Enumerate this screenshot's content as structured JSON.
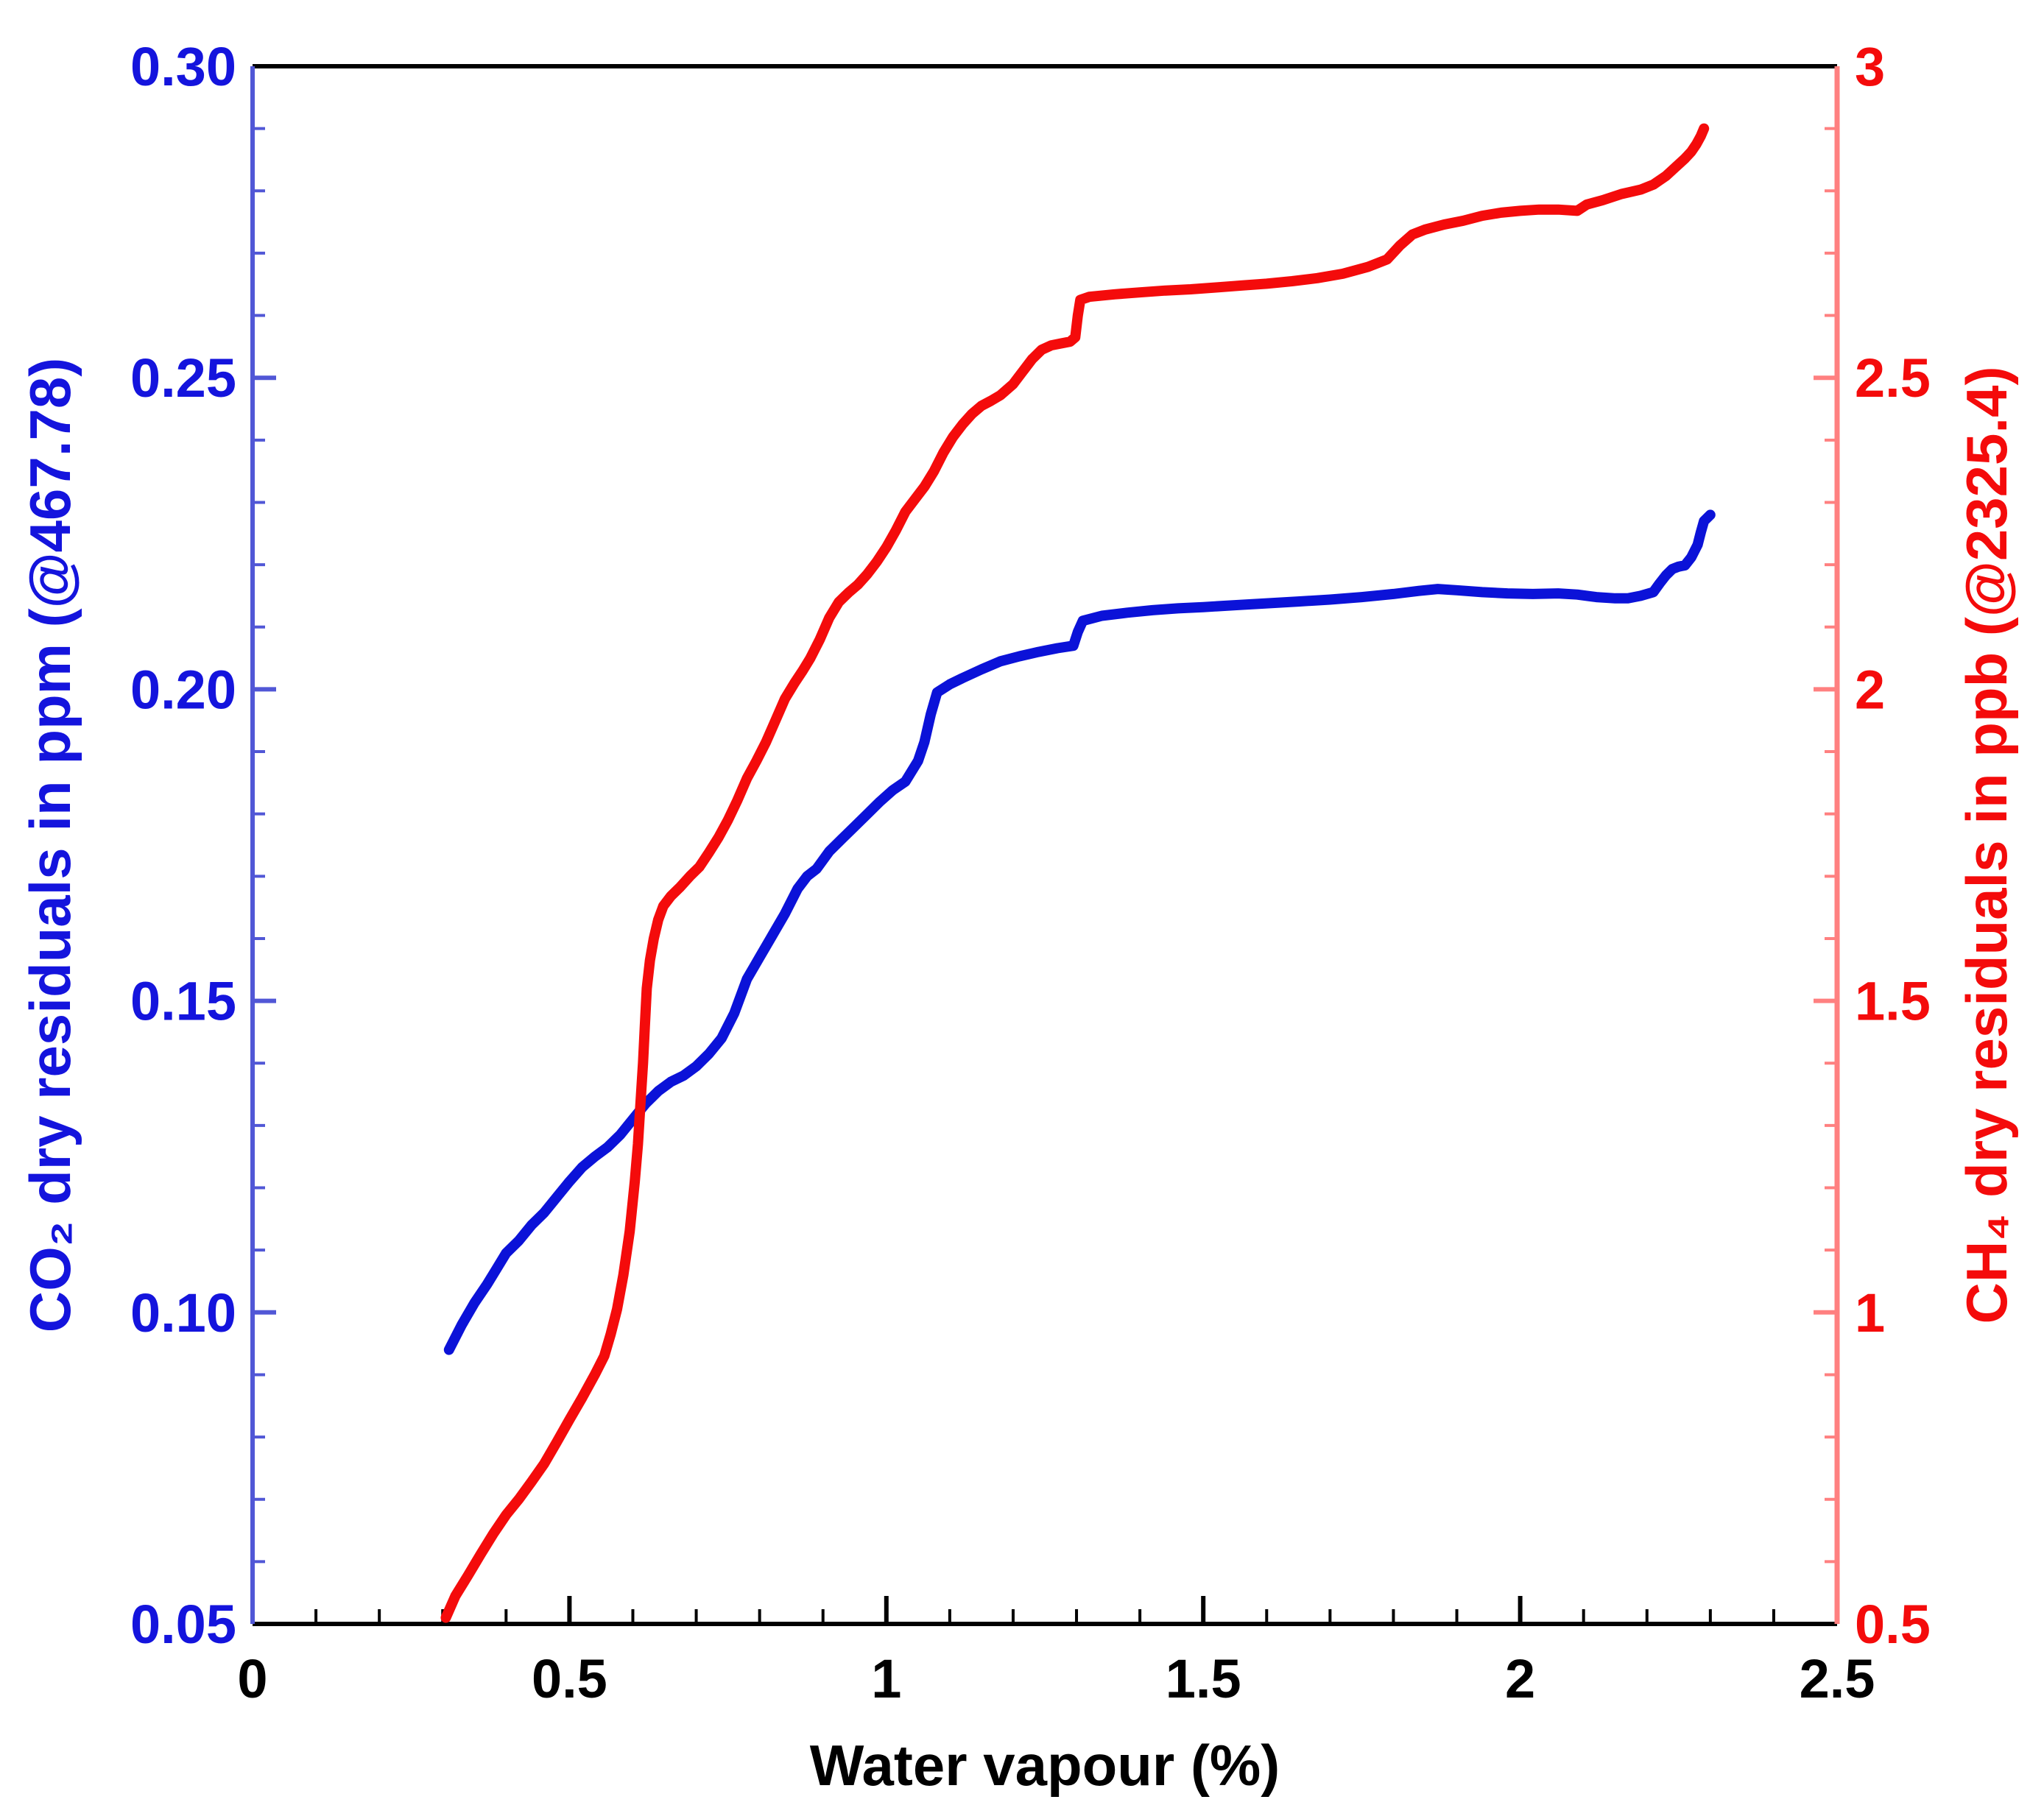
{
  "chart_data": {
    "type": "line",
    "title": "",
    "xlabel": "Water vapour (%)",
    "ylabel_left": "CO₂ dry residuals in ppm (@467.78)",
    "ylabel_right": "CH₄ dry residuals in ppb (@2325.4)",
    "grid": false,
    "legend": "none",
    "colors": {
      "left_accent": "#1414dd",
      "left_axis_line": "#5157d6",
      "right_accent": "#f40b0b",
      "right_axis_line": "#ff8080",
      "frame": "#000000"
    },
    "x_axis": {
      "min": 0,
      "max": 2.5,
      "major_step": 0.5,
      "minor_step": 0.1,
      "tick_values": [
        0,
        0.5,
        1,
        1.5,
        2,
        2.5
      ],
      "tick_labels": [
        "0",
        "0.5",
        "1",
        "1.5",
        "2",
        "2.5"
      ]
    },
    "y_axis_left": {
      "min": 0.05,
      "max": 0.3,
      "major_step": 0.05,
      "minor_step": 0.01,
      "tick_values": [
        0.05,
        0.1,
        0.15,
        0.2,
        0.25,
        0.3
      ],
      "tick_labels": [
        "0.05",
        "0.10",
        "0.15",
        "0.20",
        "0.25",
        "0.30"
      ]
    },
    "y_axis_right": {
      "min": 0.5,
      "max": 3,
      "major_step": 0.5,
      "minor_step": 0.1,
      "tick_values": [
        0.5,
        1,
        1.5,
        2,
        2.5,
        3
      ],
      "tick_labels": [
        "0.5",
        "1",
        "1.5",
        "2",
        "2.5",
        "3"
      ]
    },
    "series": [
      {
        "name": "CO2 dry residuals",
        "axis": "left",
        "color": "#0b12d8",
        "points": [
          [
            0.31,
            0.094
          ],
          [
            0.33,
            0.098
          ],
          [
            0.35,
            0.1015
          ],
          [
            0.37,
            0.1045
          ],
          [
            0.385,
            0.107
          ],
          [
            0.4,
            0.1095
          ],
          [
            0.42,
            0.1115
          ],
          [
            0.44,
            0.114
          ],
          [
            0.46,
            0.116
          ],
          [
            0.48,
            0.1185
          ],
          [
            0.5,
            0.121
          ],
          [
            0.52,
            0.1233
          ],
          [
            0.54,
            0.125
          ],
          [
            0.56,
            0.1265
          ],
          [
            0.58,
            0.1285
          ],
          [
            0.6,
            0.131
          ],
          [
            0.62,
            0.1335
          ],
          [
            0.64,
            0.1355
          ],
          [
            0.66,
            0.137
          ],
          [
            0.68,
            0.138
          ],
          [
            0.7,
            0.1395
          ],
          [
            0.72,
            0.1415
          ],
          [
            0.74,
            0.144
          ],
          [
            0.76,
            0.148
          ],
          [
            0.78,
            0.1535
          ],
          [
            0.8,
            0.157
          ],
          [
            0.82,
            0.1605
          ],
          [
            0.84,
            0.164
          ],
          [
            0.86,
            0.168
          ],
          [
            0.875,
            0.17
          ],
          [
            0.89,
            0.1712
          ],
          [
            0.91,
            0.174
          ],
          [
            0.93,
            0.176
          ],
          [
            0.95,
            0.178
          ],
          [
            0.97,
            0.18
          ],
          [
            0.99,
            0.182
          ],
          [
            1.01,
            0.1838
          ],
          [
            1.03,
            0.1852
          ],
          [
            1.05,
            0.1885
          ],
          [
            1.06,
            0.1915
          ],
          [
            1.07,
            0.196
          ],
          [
            1.08,
            0.1995
          ],
          [
            1.1,
            0.2008
          ],
          [
            1.12,
            0.2018
          ],
          [
            1.15,
            0.2032
          ],
          [
            1.18,
            0.2045
          ],
          [
            1.21,
            0.2053
          ],
          [
            1.24,
            0.206
          ],
          [
            1.27,
            0.2066
          ],
          [
            1.295,
            0.207
          ],
          [
            1.302,
            0.2092
          ],
          [
            1.31,
            0.211
          ],
          [
            1.34,
            0.2118
          ],
          [
            1.38,
            0.2123
          ],
          [
            1.42,
            0.2127
          ],
          [
            1.46,
            0.213
          ],
          [
            1.5,
            0.2132
          ],
          [
            1.55,
            0.2135
          ],
          [
            1.6,
            0.2138
          ],
          [
            1.65,
            0.2141
          ],
          [
            1.7,
            0.2144
          ],
          [
            1.75,
            0.2148
          ],
          [
            1.8,
            0.2153
          ],
          [
            1.84,
            0.2158
          ],
          [
            1.87,
            0.2161
          ],
          [
            1.9,
            0.2159
          ],
          [
            1.94,
            0.2156
          ],
          [
            1.98,
            0.2154
          ],
          [
            2.02,
            0.2153
          ],
          [
            2.06,
            0.2154
          ],
          [
            2.09,
            0.2152
          ],
          [
            2.12,
            0.2148
          ],
          [
            2.15,
            0.2146
          ],
          [
            2.17,
            0.2146
          ],
          [
            2.19,
            0.215
          ],
          [
            2.21,
            0.2156
          ],
          [
            2.22,
            0.217
          ],
          [
            2.23,
            0.2183
          ],
          [
            2.24,
            0.2193
          ],
          [
            2.25,
            0.2197
          ],
          [
            2.26,
            0.2199
          ],
          [
            2.27,
            0.2212
          ],
          [
            2.28,
            0.2232
          ],
          [
            2.285,
            0.2252
          ],
          [
            2.29,
            0.227
          ],
          [
            2.3,
            0.228
          ]
        ]
      },
      {
        "name": "CH4 dry residuals",
        "axis": "right",
        "color": "#f40b0b",
        "points": [
          [
            0.305,
            0.51
          ],
          [
            0.32,
            0.545
          ],
          [
            0.34,
            0.578
          ],
          [
            0.36,
            0.612
          ],
          [
            0.38,
            0.645
          ],
          [
            0.4,
            0.675
          ],
          [
            0.42,
            0.7
          ],
          [
            0.44,
            0.728
          ],
          [
            0.46,
            0.757
          ],
          [
            0.48,
            0.792
          ],
          [
            0.5,
            0.828
          ],
          [
            0.52,
            0.863
          ],
          [
            0.54,
            0.9
          ],
          [
            0.555,
            0.93
          ],
          [
            0.565,
            0.965
          ],
          [
            0.575,
            1.005
          ],
          [
            0.585,
            1.06
          ],
          [
            0.595,
            1.13
          ],
          [
            0.603,
            1.21
          ],
          [
            0.608,
            1.27
          ],
          [
            0.612,
            1.335
          ],
          [
            0.616,
            1.4
          ],
          [
            0.619,
            1.46
          ],
          [
            0.622,
            1.52
          ],
          [
            0.627,
            1.565
          ],
          [
            0.633,
            1.6
          ],
          [
            0.64,
            1.63
          ],
          [
            0.648,
            1.652
          ],
          [
            0.66,
            1.668
          ],
          [
            0.675,
            1.683
          ],
          [
            0.69,
            1.7
          ],
          [
            0.705,
            1.715
          ],
          [
            0.72,
            1.738
          ],
          [
            0.735,
            1.762
          ],
          [
            0.75,
            1.79
          ],
          [
            0.765,
            1.822
          ],
          [
            0.78,
            1.857
          ],
          [
            0.795,
            1.885
          ],
          [
            0.81,
            1.915
          ],
          [
            0.825,
            1.95
          ],
          [
            0.84,
            1.985
          ],
          [
            0.855,
            2.01
          ],
          [
            0.868,
            2.03
          ],
          [
            0.88,
            2.05
          ],
          [
            0.895,
            2.08
          ],
          [
            0.91,
            2.115
          ],
          [
            0.925,
            2.14
          ],
          [
            0.94,
            2.155
          ],
          [
            0.955,
            2.168
          ],
          [
            0.97,
            2.185
          ],
          [
            0.985,
            2.205
          ],
          [
            1.0,
            2.228
          ],
          [
            1.015,
            2.255
          ],
          [
            1.03,
            2.285
          ],
          [
            1.045,
            2.305
          ],
          [
            1.06,
            2.325
          ],
          [
            1.075,
            2.35
          ],
          [
            1.09,
            2.38
          ],
          [
            1.105,
            2.405
          ],
          [
            1.12,
            2.425
          ],
          [
            1.135,
            2.442
          ],
          [
            1.15,
            2.455
          ],
          [
            1.165,
            2.463
          ],
          [
            1.18,
            2.472
          ],
          [
            1.2,
            2.49
          ],
          [
            1.215,
            2.51
          ],
          [
            1.23,
            2.53
          ],
          [
            1.245,
            2.545
          ],
          [
            1.26,
            2.552
          ],
          [
            1.275,
            2.555
          ],
          [
            1.29,
            2.558
          ],
          [
            1.298,
            2.565
          ],
          [
            1.302,
            2.6
          ],
          [
            1.306,
            2.625
          ],
          [
            1.32,
            2.63
          ],
          [
            1.36,
            2.634
          ],
          [
            1.4,
            2.637
          ],
          [
            1.44,
            2.64
          ],
          [
            1.48,
            2.642
          ],
          [
            1.52,
            2.645
          ],
          [
            1.56,
            2.648
          ],
          [
            1.6,
            2.651
          ],
          [
            1.64,
            2.655
          ],
          [
            1.68,
            2.66
          ],
          [
            1.72,
            2.667
          ],
          [
            1.76,
            2.678
          ],
          [
            1.79,
            2.69
          ],
          [
            1.81,
            2.712
          ],
          [
            1.83,
            2.73
          ],
          [
            1.85,
            2.738
          ],
          [
            1.88,
            2.746
          ],
          [
            1.91,
            2.752
          ],
          [
            1.94,
            2.76
          ],
          [
            1.97,
            2.765
          ],
          [
            2.0,
            2.768
          ],
          [
            2.03,
            2.77
          ],
          [
            2.06,
            2.77
          ],
          [
            2.09,
            2.768
          ],
          [
            2.105,
            2.778
          ],
          [
            2.13,
            2.785
          ],
          [
            2.16,
            2.795
          ],
          [
            2.19,
            2.802
          ],
          [
            2.21,
            2.81
          ],
          [
            2.23,
            2.824
          ],
          [
            2.245,
            2.838
          ],
          [
            2.26,
            2.852
          ],
          [
            2.27,
            2.863
          ],
          [
            2.278,
            2.875
          ],
          [
            2.285,
            2.888
          ],
          [
            2.29,
            2.9
          ]
        ]
      }
    ]
  }
}
